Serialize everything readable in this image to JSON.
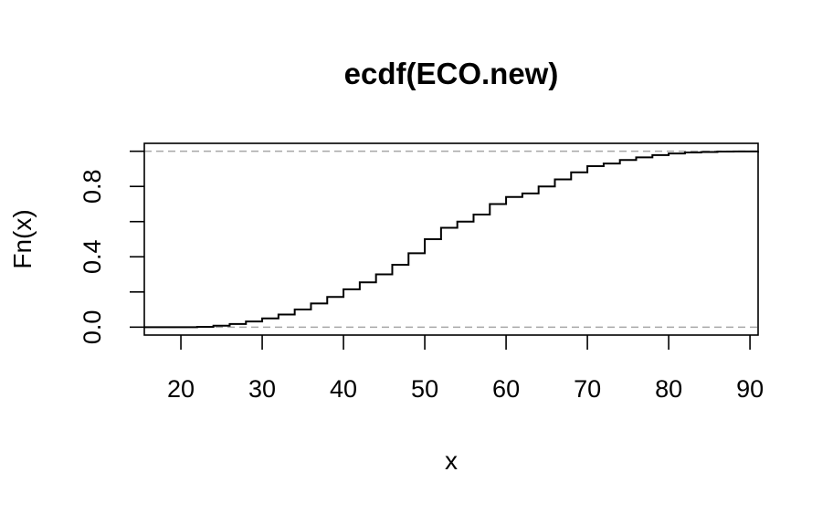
{
  "chart_data": {
    "type": "line",
    "step": true,
    "title": "ecdf(ECO.new)",
    "xlabel": "x",
    "ylabel": "Fn(x)",
    "xlim": [
      15.5,
      91
    ],
    "ylim": [
      -0.045,
      1.045
    ],
    "x_ticks": [
      20,
      30,
      40,
      50,
      60,
      70,
      80,
      90
    ],
    "x_tick_labels": [
      "20",
      "30",
      "40",
      "50",
      "60",
      "70",
      "80",
      "90"
    ],
    "y_ticks": [
      0,
      0.2,
      0.4,
      0.6,
      0.8,
      1.0
    ],
    "y_tick_labels": [
      "0.0",
      "",
      "0.4",
      "",
      "0.8",
      ""
    ],
    "reference_lines": [
      0,
      1
    ],
    "grid": false,
    "colors": {
      "curve": "#000000",
      "reference": "#a6a6a6",
      "axis": "#000000"
    },
    "series": [
      {
        "x": [
          15.5,
          22,
          24,
          26,
          28,
          30,
          32,
          34,
          36,
          38,
          40,
          42,
          44,
          46,
          48,
          50,
          52,
          54,
          56,
          58,
          60,
          62,
          64,
          66,
          68,
          70,
          72,
          74,
          76,
          78,
          80,
          82,
          84,
          86,
          88,
          91
        ],
        "y": [
          0.0,
          0.002,
          0.008,
          0.018,
          0.032,
          0.05,
          0.072,
          0.1,
          0.135,
          0.172,
          0.215,
          0.255,
          0.3,
          0.355,
          0.42,
          0.5,
          0.565,
          0.6,
          0.64,
          0.7,
          0.74,
          0.76,
          0.8,
          0.84,
          0.88,
          0.915,
          0.93,
          0.95,
          0.965,
          0.978,
          0.987,
          0.993,
          0.996,
          0.998,
          0.999,
          1.0
        ]
      }
    ]
  }
}
